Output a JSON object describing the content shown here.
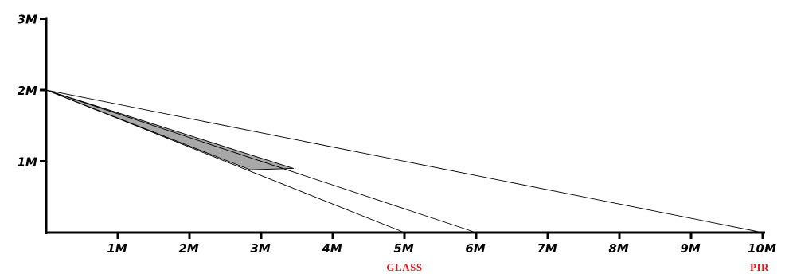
{
  "diagram": {
    "x_tick_labels": [
      "1M",
      "2M",
      "3M",
      "4M",
      "5M",
      "6M",
      "7M",
      "8M",
      "9M",
      "10M"
    ],
    "y_tick_labels": [
      "1M",
      "2M",
      "3M"
    ],
    "zone_labels": {
      "glass": "GLASS",
      "pir": "PIR"
    },
    "colors": {
      "axis": "#000000",
      "line": "#000000",
      "shaded_area": "#a8a8a8",
      "zone_label": "#e8191e"
    }
  },
  "chart_data": {
    "type": "line",
    "xlim": [
      0,
      10
    ],
    "ylim": [
      0,
      3
    ],
    "x_ticks": [
      1,
      2,
      3,
      4,
      5,
      6,
      7,
      8,
      9,
      10
    ],
    "y_ticks": [
      1,
      2,
      3
    ],
    "origin": [
      0,
      2
    ],
    "lines": [
      {
        "from": [
          0,
          2
        ],
        "to": [
          5,
          0
        ]
      },
      {
        "from": [
          0,
          2
        ],
        "to": [
          6,
          0
        ]
      },
      {
        "from": [
          0,
          2
        ],
        "to": [
          10,
          0
        ]
      }
    ],
    "shaded_region": [
      [
        0,
        2
      ],
      [
        3.45,
        0.9
      ],
      [
        2.85,
        0.88
      ]
    ],
    "zone_markers": [
      {
        "label_key": "glass",
        "x": 5
      },
      {
        "label_key": "pir",
        "x": 10
      }
    ]
  }
}
